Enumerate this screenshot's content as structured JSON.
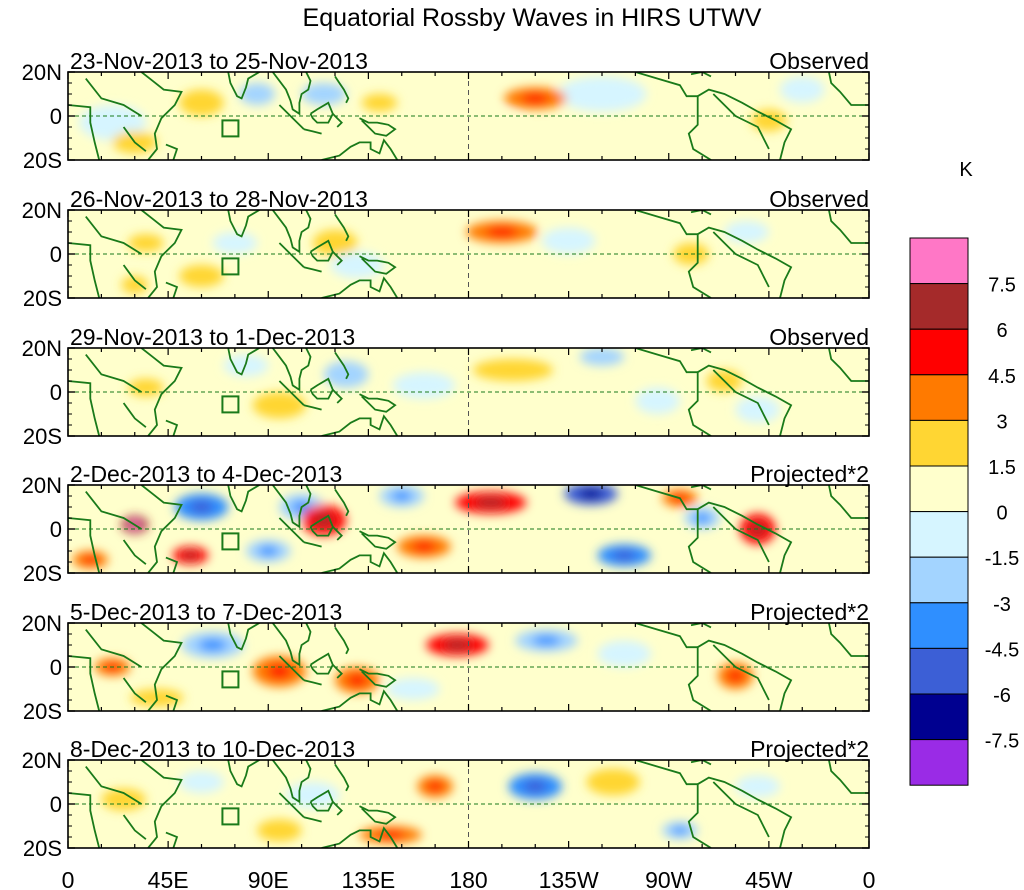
{
  "chart_data": {
    "type": "heatmap",
    "title": "Equatorial Rossby Waves in HIRS UTWV",
    "units": "K",
    "x_ticks": [
      "0",
      "45E",
      "90E",
      "135E",
      "180",
      "135W",
      "90W",
      "45W",
      "0"
    ],
    "y_ticks": [
      "20N",
      "0",
      "20S"
    ],
    "colorbar": {
      "labels": [
        "7.5",
        "6",
        "4.5",
        "3",
        "1.5",
        "0",
        "-1.5",
        "-3",
        "-4.5",
        "-6",
        "-7.5"
      ],
      "colors": [
        "#ff77c6",
        "#a52a2a",
        "#ff0000",
        "#ff7a00",
        "#ffd633",
        "#ffffcc",
        "#d6f5ff",
        "#a3d4ff",
        "#2f8fff",
        "#3c5fd6",
        "#000090",
        "#9a2be6"
      ]
    },
    "panels": [
      {
        "date_range": "23-Nov-2013 to 25-Nov-2013",
        "kind": "Observed",
        "blobs": [
          {
            "x": 30,
            "y": -12,
            "v": 2,
            "rx": 10,
            "ry": 5
          },
          {
            "x": 140,
            "y": 6,
            "v": 2,
            "rx": 8,
            "ry": 4
          },
          {
            "x": 210,
            "y": 8,
            "v": 3,
            "rx": 14,
            "ry": 5
          },
          {
            "x": 85,
            "y": 10,
            "v": -2,
            "rx": 8,
            "ry": 5
          },
          {
            "x": 115,
            "y": 10,
            "v": -2,
            "rx": 10,
            "ry": 5
          },
          {
            "x": 315,
            "y": -2,
            "v": 2,
            "rx": 8,
            "ry": 5
          },
          {
            "x": 20,
            "y": -3,
            "v": -1.5,
            "rx": 15,
            "ry": 8
          },
          {
            "x": 60,
            "y": 6,
            "v": 1.5,
            "rx": 10,
            "ry": 6
          },
          {
            "x": 240,
            "y": 10,
            "v": -1,
            "rx": 20,
            "ry": 8
          },
          {
            "x": 330,
            "y": 12,
            "v": -1.5,
            "rx": 10,
            "ry": 6
          },
          {
            "x": 180,
            "y": -5,
            "v": 1,
            "rx": 25,
            "ry": 8
          }
        ]
      },
      {
        "date_range": "26-Nov-2013 to 28-Nov-2013",
        "kind": "Observed",
        "blobs": [
          {
            "x": 35,
            "y": 5,
            "v": 2,
            "rx": 8,
            "ry": 4
          },
          {
            "x": 195,
            "y": 10,
            "v": 3,
            "rx": 16,
            "ry": 5
          },
          {
            "x": 30,
            "y": -14,
            "v": 2,
            "rx": 6,
            "ry": 4
          },
          {
            "x": 120,
            "y": 5,
            "v": 1.5,
            "rx": 10,
            "ry": 6
          },
          {
            "x": 225,
            "y": 6,
            "v": -1.5,
            "rx": 12,
            "ry": 6
          },
          {
            "x": 75,
            "y": 5,
            "v": -1.5,
            "rx": 10,
            "ry": 5
          },
          {
            "x": 280,
            "y": 0,
            "v": 1.5,
            "rx": 8,
            "ry": 5
          },
          {
            "x": 130,
            "y": -5,
            "v": -1.5,
            "rx": 12,
            "ry": 6
          },
          {
            "x": 305,
            "y": 10,
            "v": -1.5,
            "rx": 10,
            "ry": 5
          },
          {
            "x": 60,
            "y": -10,
            "v": 1.5,
            "rx": 10,
            "ry": 5
          }
        ]
      },
      {
        "date_range": "29-Nov-2013 to 1-Dec-2013",
        "kind": "Observed",
        "blobs": [
          {
            "x": 35,
            "y": 2,
            "v": 2,
            "rx": 8,
            "ry": 4
          },
          {
            "x": 125,
            "y": 8,
            "v": -2,
            "rx": 10,
            "ry": 6
          },
          {
            "x": 240,
            "y": 16,
            "v": -2,
            "rx": 10,
            "ry": 4
          },
          {
            "x": 160,
            "y": 3,
            "v": -1.5,
            "rx": 14,
            "ry": 6
          },
          {
            "x": 80,
            "y": 12,
            "v": -1.5,
            "rx": 10,
            "ry": 5
          },
          {
            "x": 95,
            "y": -6,
            "v": 1.5,
            "rx": 12,
            "ry": 6
          },
          {
            "x": 200,
            "y": 10,
            "v": 1.5,
            "rx": 18,
            "ry": 5
          },
          {
            "x": 295,
            "y": 5,
            "v": 1.5,
            "rx": 8,
            "ry": 5
          },
          {
            "x": 310,
            "y": -8,
            "v": -1.5,
            "rx": 10,
            "ry": 6
          },
          {
            "x": 265,
            "y": -4,
            "v": -1.5,
            "rx": 10,
            "ry": 6
          }
        ]
      },
      {
        "date_range": "2-Dec-2013 to 4-Dec-2013",
        "kind": "Projected*2",
        "blobs": [
          {
            "x": 30,
            "y": 2,
            "v": 6,
            "rx": 6,
            "ry": 4
          },
          {
            "x": 60,
            "y": 10,
            "v": -4.5,
            "rx": 12,
            "ry": 6
          },
          {
            "x": 105,
            "y": 10,
            "v": -3,
            "rx": 10,
            "ry": 6
          },
          {
            "x": 115,
            "y": 4,
            "v": 4.5,
            "rx": 10,
            "ry": 7
          },
          {
            "x": 190,
            "y": 12,
            "v": 4.5,
            "rx": 16,
            "ry": 5
          },
          {
            "x": 235,
            "y": 16,
            "v": -6,
            "rx": 12,
            "ry": 5
          },
          {
            "x": 250,
            "y": -12,
            "v": -4.5,
            "rx": 12,
            "ry": 5
          },
          {
            "x": 160,
            "y": -8,
            "v": 3,
            "rx": 12,
            "ry": 5
          },
          {
            "x": 310,
            "y": 0,
            "v": 4.5,
            "rx": 8,
            "ry": 7
          },
          {
            "x": 285,
            "y": 5,
            "v": -3,
            "rx": 8,
            "ry": 5
          },
          {
            "x": 55,
            "y": -12,
            "v": 4.5,
            "rx": 8,
            "ry": 4
          },
          {
            "x": 90,
            "y": -10,
            "v": -3,
            "rx": 10,
            "ry": 5
          },
          {
            "x": 10,
            "y": -14,
            "v": 3,
            "rx": 8,
            "ry": 4
          },
          {
            "x": 150,
            "y": 15,
            "v": -3,
            "rx": 10,
            "ry": 5
          },
          {
            "x": 275,
            "y": 14,
            "v": 3,
            "rx": 8,
            "ry": 4
          }
        ]
      },
      {
        "date_range": "5-Dec-2013 to 7-Dec-2013",
        "kind": "Projected*2",
        "blobs": [
          {
            "x": 65,
            "y": 10,
            "v": -3,
            "rx": 14,
            "ry": 6
          },
          {
            "x": 175,
            "y": 10,
            "v": 4.5,
            "rx": 14,
            "ry": 5
          },
          {
            "x": 215,
            "y": 12,
            "v": -3,
            "rx": 14,
            "ry": 5
          },
          {
            "x": 95,
            "y": -2,
            "v": 3,
            "rx": 12,
            "ry": 7
          },
          {
            "x": 130,
            "y": -6,
            "v": 3,
            "rx": 10,
            "ry": 6
          },
          {
            "x": 20,
            "y": 0,
            "v": 3,
            "rx": 8,
            "ry": 4
          },
          {
            "x": 300,
            "y": -4,
            "v": 3,
            "rx": 8,
            "ry": 6
          },
          {
            "x": 250,
            "y": 6,
            "v": -1.5,
            "rx": 12,
            "ry": 6
          },
          {
            "x": 155,
            "y": -10,
            "v": -1.5,
            "rx": 12,
            "ry": 5
          },
          {
            "x": 40,
            "y": -14,
            "v": 1.5,
            "rx": 12,
            "ry": 4
          }
        ]
      },
      {
        "date_range": "8-Dec-2013 to 10-Dec-2013",
        "kind": "Projected*2",
        "blobs": [
          {
            "x": 210,
            "y": 8,
            "v": -4.5,
            "rx": 12,
            "ry": 6
          },
          {
            "x": 165,
            "y": 8,
            "v": 3,
            "rx": 8,
            "ry": 5
          },
          {
            "x": 145,
            "y": -14,
            "v": 3,
            "rx": 14,
            "ry": 4
          },
          {
            "x": 60,
            "y": 10,
            "v": -1.5,
            "rx": 10,
            "ry": 5
          },
          {
            "x": 110,
            "y": 4,
            "v": -1.5,
            "rx": 12,
            "ry": 6
          },
          {
            "x": 245,
            "y": 10,
            "v": 1.5,
            "rx": 12,
            "ry": 6
          },
          {
            "x": 275,
            "y": -12,
            "v": -3,
            "rx": 8,
            "ry": 4
          },
          {
            "x": 25,
            "y": 2,
            "v": 1.5,
            "rx": 10,
            "ry": 5
          },
          {
            "x": 310,
            "y": 8,
            "v": -1.5,
            "rx": 10,
            "ry": 5
          },
          {
            "x": 95,
            "y": -12,
            "v": 1.5,
            "rx": 10,
            "ry": 5
          }
        ]
      }
    ]
  }
}
